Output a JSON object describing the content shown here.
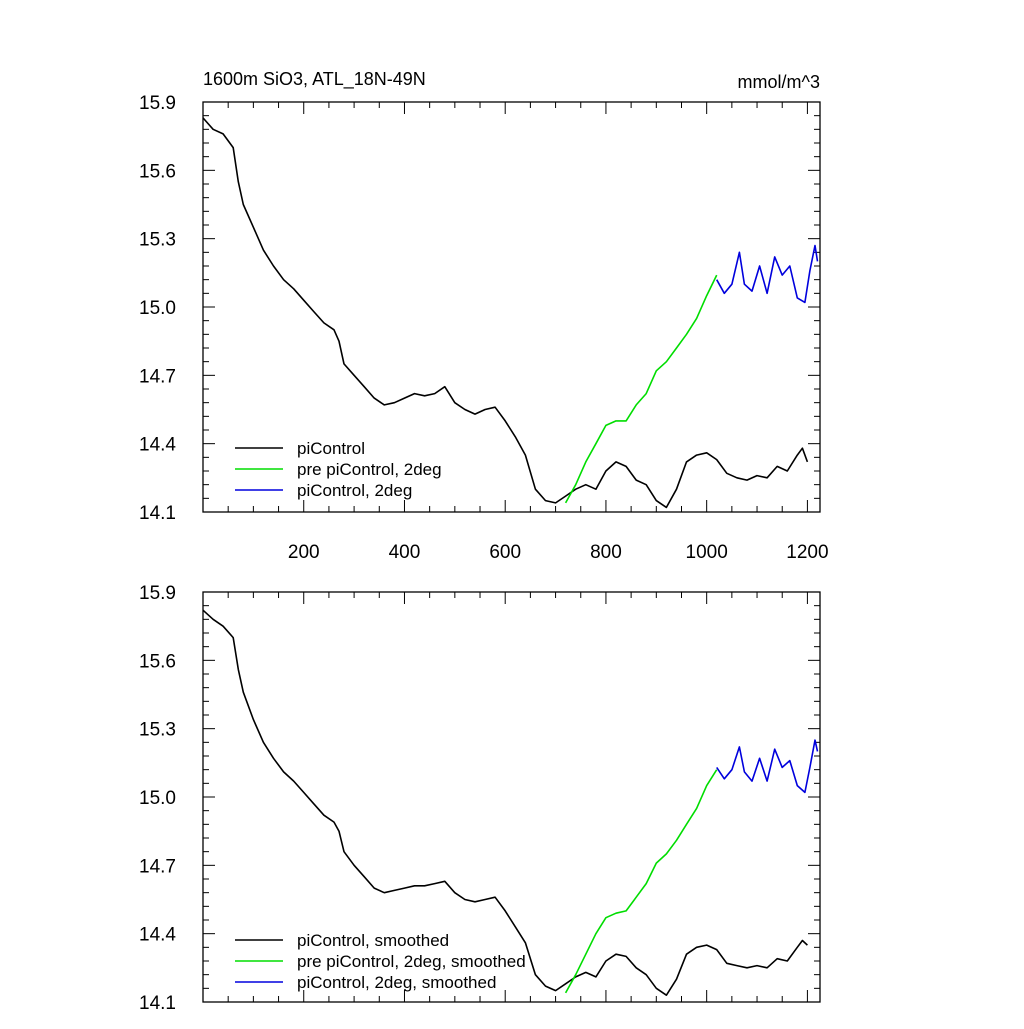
{
  "chart_data": [
    {
      "type": "line",
      "title": "1600m SiO3, ATL_18N-49N",
      "units": "mmol/m^3",
      "xlim": [
        0,
        1225
      ],
      "ylim": [
        14.1,
        15.9
      ],
      "yticks": [
        "15.9",
        "15.6",
        "15.3",
        "15.0",
        "14.7",
        "14.4",
        "14.1"
      ],
      "xticks": [
        "200",
        "400",
        "600",
        "800",
        "1000",
        "1200"
      ],
      "legend_position": "bottom-left",
      "series": [
        {
          "name": "piControl",
          "color": "#000000",
          "x": [
            0,
            20,
            40,
            60,
            70,
            80,
            100,
            120,
            140,
            160,
            180,
            200,
            220,
            240,
            260,
            270,
            280,
            300,
            320,
            340,
            360,
            380,
            400,
            420,
            440,
            460,
            480,
            500,
            520,
            540,
            560,
            580,
            600,
            620,
            640,
            660,
            680,
            700,
            720,
            740,
            760,
            780,
            800,
            820,
            840,
            860,
            880,
            900,
            920,
            940,
            960,
            980,
            1000,
            1020,
            1040,
            1060,
            1080,
            1100,
            1120,
            1140,
            1160,
            1180,
            1190,
            1200
          ],
          "y": [
            15.83,
            15.78,
            15.76,
            15.7,
            15.55,
            15.45,
            15.35,
            15.25,
            15.18,
            15.12,
            15.08,
            15.03,
            14.98,
            14.93,
            14.9,
            14.85,
            14.75,
            14.7,
            14.65,
            14.6,
            14.57,
            14.58,
            14.6,
            14.62,
            14.61,
            14.62,
            14.65,
            14.58,
            14.55,
            14.53,
            14.55,
            14.56,
            14.5,
            14.43,
            14.35,
            14.2,
            14.15,
            14.14,
            14.17,
            14.2,
            14.22,
            14.2,
            14.28,
            14.32,
            14.3,
            14.24,
            14.22,
            14.15,
            14.12,
            14.2,
            14.32,
            14.35,
            14.36,
            14.33,
            14.27,
            14.25,
            14.24,
            14.26,
            14.25,
            14.3,
            14.28,
            14.35,
            14.38,
            14.32
          ]
        },
        {
          "name": "pre piControl, 2deg",
          "color": "#00dd00",
          "x": [
            720,
            740,
            760,
            780,
            800,
            820,
            840,
            860,
            880,
            900,
            920,
            940,
            960,
            980,
            1000,
            1020
          ],
          "y": [
            14.14,
            14.22,
            14.32,
            14.4,
            14.48,
            14.5,
            14.5,
            14.57,
            14.62,
            14.72,
            14.76,
            14.82,
            14.88,
            14.95,
            15.05,
            15.14
          ]
        },
        {
          "name": "piControl, 2deg",
          "color": "#0000dd",
          "x": [
            1020,
            1035,
            1050,
            1065,
            1075,
            1090,
            1105,
            1120,
            1135,
            1150,
            1165,
            1180,
            1195,
            1205,
            1215,
            1220
          ],
          "y": [
            15.12,
            15.06,
            15.1,
            15.24,
            15.1,
            15.07,
            15.18,
            15.06,
            15.22,
            15.14,
            15.18,
            15.04,
            15.02,
            15.16,
            15.27,
            15.2
          ]
        }
      ]
    },
    {
      "type": "line",
      "title": "",
      "units": "",
      "xlim": [
        0,
        1225
      ],
      "ylim": [
        14.1,
        15.9
      ],
      "yticks": [
        "15.9",
        "15.6",
        "15.3",
        "15.0",
        "14.7",
        "14.4",
        "14.1"
      ],
      "xticks": [],
      "legend_position": "bottom-left",
      "series": [
        {
          "name": "piControl, smoothed",
          "color": "#000000",
          "x": [
            0,
            20,
            40,
            60,
            70,
            80,
            100,
            120,
            140,
            160,
            180,
            200,
            220,
            240,
            260,
            270,
            280,
            300,
            320,
            340,
            360,
            380,
            400,
            420,
            440,
            460,
            480,
            500,
            520,
            540,
            560,
            580,
            600,
            620,
            640,
            660,
            680,
            700,
            720,
            740,
            760,
            780,
            800,
            820,
            840,
            860,
            880,
            900,
            920,
            940,
            960,
            980,
            1000,
            1020,
            1040,
            1060,
            1080,
            1100,
            1120,
            1140,
            1160,
            1180,
            1190,
            1200
          ],
          "y": [
            15.82,
            15.78,
            15.75,
            15.7,
            15.56,
            15.46,
            15.34,
            15.24,
            15.17,
            15.11,
            15.07,
            15.02,
            14.97,
            14.92,
            14.89,
            14.85,
            14.76,
            14.7,
            14.65,
            14.6,
            14.58,
            14.59,
            14.6,
            14.61,
            14.61,
            14.62,
            14.63,
            14.58,
            14.55,
            14.54,
            14.55,
            14.56,
            14.5,
            14.43,
            14.36,
            14.22,
            14.17,
            14.15,
            14.18,
            14.21,
            14.23,
            14.21,
            14.28,
            14.31,
            14.3,
            14.25,
            14.22,
            14.16,
            14.13,
            14.2,
            14.31,
            14.34,
            14.35,
            14.33,
            14.27,
            14.26,
            14.25,
            14.26,
            14.25,
            14.29,
            14.28,
            14.34,
            14.37,
            14.35
          ]
        },
        {
          "name": "pre piControl, 2deg, smoothed",
          "color": "#00dd00",
          "x": [
            720,
            740,
            760,
            780,
            800,
            820,
            840,
            860,
            880,
            900,
            920,
            940,
            960,
            980,
            1000,
            1020
          ],
          "y": [
            14.14,
            14.22,
            14.31,
            14.4,
            14.47,
            14.49,
            14.5,
            14.56,
            14.62,
            14.71,
            14.75,
            14.81,
            14.88,
            14.95,
            15.05,
            15.12
          ]
        },
        {
          "name": "piControl, 2deg, smoothed",
          "color": "#0000dd",
          "x": [
            1020,
            1035,
            1050,
            1065,
            1075,
            1090,
            1105,
            1120,
            1135,
            1150,
            1165,
            1180,
            1195,
            1205,
            1215,
            1220
          ],
          "y": [
            15.13,
            15.08,
            15.12,
            15.22,
            15.11,
            15.07,
            15.17,
            15.07,
            15.21,
            15.13,
            15.16,
            15.05,
            15.02,
            15.13,
            15.25,
            15.2
          ]
        }
      ]
    }
  ]
}
